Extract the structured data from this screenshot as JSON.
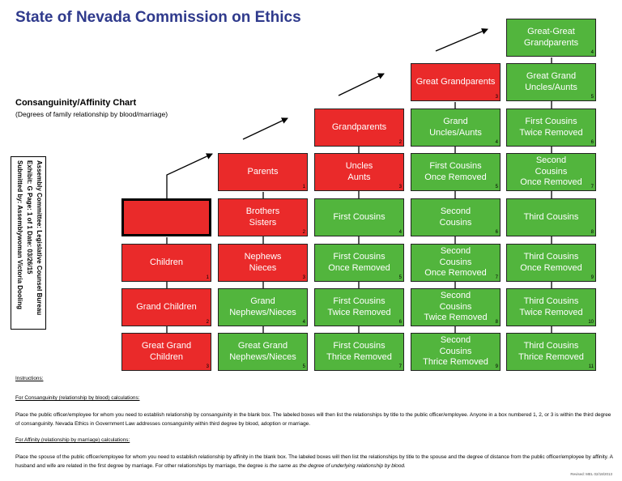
{
  "header": {
    "title": "State of Nevada Commission on Ethics",
    "chart_title": "Consanguinity/Affinity Chart",
    "chart_subtitle": "(Degrees of family relationship by blood/marriage)"
  },
  "stamp": {
    "line1": "Assembly Committee: Legislative Counsel Bureau",
    "line2": "Exhibit: G    Page: 1 of 1    Date: 03/26/15",
    "line3": "Submitted by: Assemblywoman Victoria Dooling"
  },
  "colors": {
    "blood": "#ea2a2a",
    "marriage": "#52b53d",
    "title": "#2f3a8c"
  },
  "chart": {
    "boxes": [
      {
        "label": "",
        "num": "",
        "color": "red",
        "blank": true
      },
      {
        "label": "Children",
        "num": "1",
        "color": "red"
      },
      {
        "label": "Grand Children",
        "num": "2",
        "color": "red"
      },
      {
        "label": "Great Grand\nChildren",
        "num": "3",
        "color": "red"
      },
      {
        "label": "Parents",
        "num": "1",
        "color": "red"
      },
      {
        "label": "Brothers\nSisters",
        "num": "2",
        "color": "red"
      },
      {
        "label": "Nephews\nNieces",
        "num": "3",
        "color": "red"
      },
      {
        "label": "Grand\nNephews/Nieces",
        "num": "4",
        "color": "green"
      },
      {
        "label": "Great Grand\nNephews/Nieces",
        "num": "5",
        "color": "green"
      },
      {
        "label": "Grandparents",
        "num": "2",
        "color": "red"
      },
      {
        "label": "Uncles\nAunts",
        "num": "3",
        "color": "red"
      },
      {
        "label": "First Cousins",
        "num": "4",
        "color": "green"
      },
      {
        "label": "First Cousins\nOnce Removed",
        "num": "5",
        "color": "green"
      },
      {
        "label": "First Cousins\nTwice Removed",
        "num": "6",
        "color": "green"
      },
      {
        "label": "First Cousins\nThrice Removed",
        "num": "7",
        "color": "green"
      },
      {
        "label": "Great Grandparents",
        "num": "3",
        "color": "red"
      },
      {
        "label": "Grand\nUncles/Aunts",
        "num": "4",
        "color": "green"
      },
      {
        "label": "First Cousins\nOnce Removed",
        "num": "5",
        "color": "green"
      },
      {
        "label": "Second\nCousins",
        "num": "6",
        "color": "green"
      },
      {
        "label": "Second\nCousins\nOnce Removed",
        "num": "7",
        "color": "green"
      },
      {
        "label": "Second\nCousins\nTwice Removed",
        "num": "8",
        "color": "green"
      },
      {
        "label": "Second\nCousins\nThrice Removed",
        "num": "9",
        "color": "green"
      },
      {
        "label": "Great-Great\nGrandparents",
        "num": "4",
        "color": "green"
      },
      {
        "label": "Great Grand\nUncles/Aunts",
        "num": "5",
        "color": "green"
      },
      {
        "label": "First Cousins\nTwice Removed",
        "num": "6",
        "color": "green"
      },
      {
        "label": "Second\nCousins\nOnce Removed",
        "num": "7",
        "color": "green"
      },
      {
        "label": "Third Cousins",
        "num": "8",
        "color": "green"
      },
      {
        "label": "Third Cousins\nOnce Removed",
        "num": "9",
        "color": "green"
      },
      {
        "label": "Third Cousins\nTwice Removed",
        "num": "10",
        "color": "green"
      },
      {
        "label": "Third Cousins\nThrice Removed",
        "num": "11",
        "color": "green"
      }
    ]
  },
  "instructions": {
    "heading": "Instructions:",
    "consanguinity_heading": "For Consanguinity (relationship by blood) calculations:",
    "consanguinity_text": "Place the public officer/employee for whom you need to establish relationship by consanguinity in the blank box. The labeled boxes will then list the relationships by title to the public officer/employee. Anyone in a box numbered 1, 2, or 3 is within the third degree of consanguinity. Nevada Ethics in Government Law addresses consanguinity within third degree by blood, adoption or marriage.",
    "affinity_heading": "For Affinity (relationship by marriage) calculations:",
    "affinity_text": "Place the spouse of the public officer/employee for whom you need to establish relationship by affinity in the blank box. The labeled boxes will then list the relationships by title to the spouse and the degree of distance from the public officer/employee by affinity. A husband and wife are related in the first degree by marriage. For other relationships by marriage, the degree ",
    "affinity_italic": "is the same as the degree of underlying relationship by blood.",
    "revised": "Revised: MEL 02/18/2013"
  }
}
